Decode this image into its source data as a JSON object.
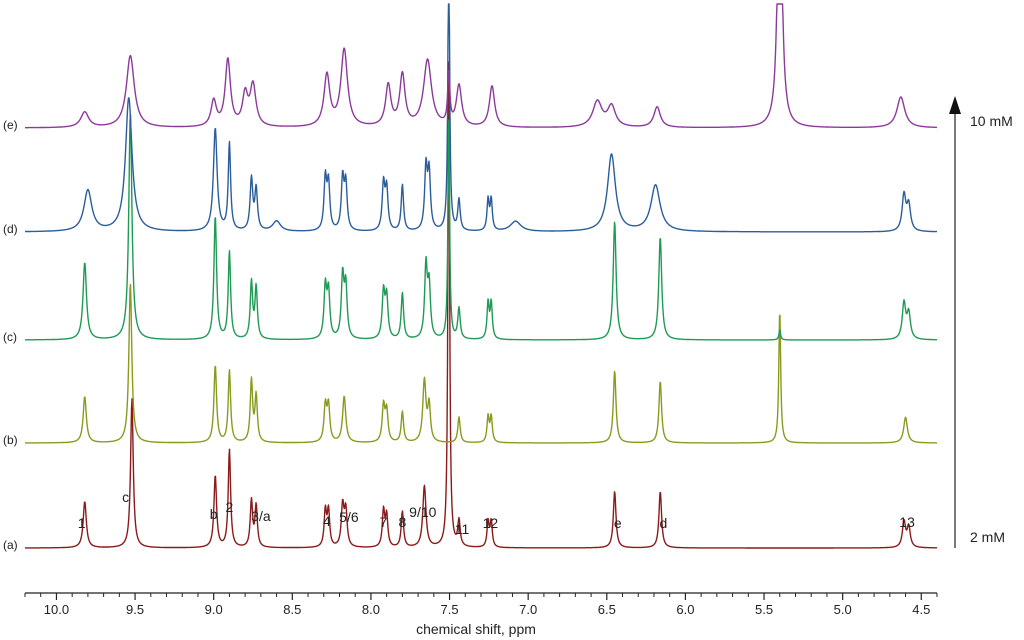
{
  "chart_data": {
    "type": "line",
    "xlabel": "chemical shift, ppm",
    "xlim": [
      10.2,
      4.4
    ],
    "x_ticks": [
      "10.0",
      "9.5",
      "9.0",
      "8.5",
      "8.0",
      "7.5",
      "7.0",
      "6.5",
      "6.0",
      "5.5",
      "5.0",
      "4.5"
    ],
    "x_tick_values": [
      10.0,
      9.5,
      9.0,
      8.5,
      8.0,
      7.5,
      7.0,
      6.5,
      6.0,
      5.5,
      5.0,
      4.5
    ],
    "concentration_arrow": {
      "top_label": "10 mM",
      "bottom_label": "2 mM"
    },
    "series": [
      {
        "name": "(a)",
        "color": "#8b1a1a",
        "peaks": [
          {
            "ppm": 9.82,
            "h": 0.09,
            "w": 0.012
          },
          {
            "ppm": 9.52,
            "h": 0.29,
            "w": 0.01
          },
          {
            "ppm": 8.99,
            "h": 0.14,
            "w": 0.01
          },
          {
            "ppm": 8.9,
            "h": 0.19,
            "w": 0.009
          },
          {
            "ppm": 8.76,
            "h": 0.09,
            "w": 0.009
          },
          {
            "ppm": 8.73,
            "h": 0.08,
            "w": 0.009
          },
          {
            "ppm": 8.29,
            "h": 0.07,
            "w": 0.009
          },
          {
            "ppm": 8.27,
            "h": 0.07,
            "w": 0.009
          },
          {
            "ppm": 8.18,
            "h": 0.08,
            "w": 0.01
          },
          {
            "ppm": 8.16,
            "h": 0.07,
            "w": 0.01
          },
          {
            "ppm": 7.92,
            "h": 0.07,
            "w": 0.009
          },
          {
            "ppm": 7.9,
            "h": 0.06,
            "w": 0.009
          },
          {
            "ppm": 7.8,
            "h": 0.07,
            "w": 0.009
          },
          {
            "ppm": 7.66,
            "h": 0.12,
            "w": 0.012
          },
          {
            "ppm": 7.505,
            "h": 1.0,
            "w": 0.006
          },
          {
            "ppm": 7.44,
            "h": 0.05,
            "w": 0.009
          },
          {
            "ppm": 7.255,
            "h": 0.05,
            "w": 0.008
          },
          {
            "ppm": 7.235,
            "h": 0.05,
            "w": 0.008
          },
          {
            "ppm": 6.45,
            "h": 0.11,
            "w": 0.01
          },
          {
            "ppm": 6.16,
            "h": 0.11,
            "w": 0.01
          },
          {
            "ppm": 4.61,
            "h": 0.05,
            "w": 0.012
          },
          {
            "ppm": 4.58,
            "h": 0.04,
            "w": 0.012
          }
        ]
      },
      {
        "name": "(b)",
        "color": "#8a9a1e",
        "peaks": [
          {
            "ppm": 9.82,
            "h": 0.09,
            "w": 0.012
          },
          {
            "ppm": 9.53,
            "h": 0.31,
            "w": 0.011
          },
          {
            "ppm": 8.99,
            "h": 0.15,
            "w": 0.01
          },
          {
            "ppm": 8.9,
            "h": 0.14,
            "w": 0.009
          },
          {
            "ppm": 8.76,
            "h": 0.12,
            "w": 0.009
          },
          {
            "ppm": 8.73,
            "h": 0.09,
            "w": 0.009
          },
          {
            "ppm": 8.29,
            "h": 0.07,
            "w": 0.01
          },
          {
            "ppm": 8.27,
            "h": 0.07,
            "w": 0.01
          },
          {
            "ppm": 8.17,
            "h": 0.09,
            "w": 0.012
          },
          {
            "ppm": 7.92,
            "h": 0.07,
            "w": 0.01
          },
          {
            "ppm": 7.9,
            "h": 0.06,
            "w": 0.01
          },
          {
            "ppm": 7.8,
            "h": 0.06,
            "w": 0.009
          },
          {
            "ppm": 7.66,
            "h": 0.12,
            "w": 0.012
          },
          {
            "ppm": 7.63,
            "h": 0.07,
            "w": 0.01
          },
          {
            "ppm": 7.44,
            "h": 0.05,
            "w": 0.009
          },
          {
            "ppm": 7.255,
            "h": 0.05,
            "w": 0.008
          },
          {
            "ppm": 7.235,
            "h": 0.05,
            "w": 0.008
          },
          {
            "ppm": 6.45,
            "h": 0.14,
            "w": 0.01
          },
          {
            "ppm": 6.16,
            "h": 0.12,
            "w": 0.01
          },
          {
            "ppm": 5.4,
            "h": 0.26,
            "w": 0.007
          },
          {
            "ppm": 4.6,
            "h": 0.05,
            "w": 0.014
          }
        ]
      },
      {
        "name": "(c)",
        "color": "#1f9a55",
        "peaks": [
          {
            "ppm": 9.82,
            "h": 0.15,
            "w": 0.013
          },
          {
            "ppm": 9.53,
            "h": 0.44,
            "w": 0.012
          },
          {
            "ppm": 8.99,
            "h": 0.24,
            "w": 0.01
          },
          {
            "ppm": 8.9,
            "h": 0.17,
            "w": 0.009
          },
          {
            "ppm": 8.76,
            "h": 0.11,
            "w": 0.009
          },
          {
            "ppm": 8.73,
            "h": 0.1,
            "w": 0.009
          },
          {
            "ppm": 8.29,
            "h": 0.1,
            "w": 0.01
          },
          {
            "ppm": 8.27,
            "h": 0.09,
            "w": 0.01
          },
          {
            "ppm": 8.18,
            "h": 0.12,
            "w": 0.01
          },
          {
            "ppm": 8.16,
            "h": 0.1,
            "w": 0.01
          },
          {
            "ppm": 7.92,
            "h": 0.09,
            "w": 0.01
          },
          {
            "ppm": 7.9,
            "h": 0.08,
            "w": 0.01
          },
          {
            "ppm": 7.8,
            "h": 0.09,
            "w": 0.009
          },
          {
            "ppm": 7.65,
            "h": 0.14,
            "w": 0.01
          },
          {
            "ppm": 7.63,
            "h": 0.1,
            "w": 0.01
          },
          {
            "ppm": 7.505,
            "h": 0.45,
            "w": 0.006
          },
          {
            "ppm": 7.44,
            "h": 0.06,
            "w": 0.009
          },
          {
            "ppm": 7.255,
            "h": 0.07,
            "w": 0.008
          },
          {
            "ppm": 7.235,
            "h": 0.07,
            "w": 0.008
          },
          {
            "ppm": 6.45,
            "h": 0.23,
            "w": 0.011
          },
          {
            "ppm": 6.16,
            "h": 0.2,
            "w": 0.011
          },
          {
            "ppm": 5.4,
            "h": 0.02,
            "w": 0.006
          },
          {
            "ppm": 4.61,
            "h": 0.07,
            "w": 0.013
          },
          {
            "ppm": 4.58,
            "h": 0.05,
            "w": 0.013
          }
        ]
      },
      {
        "name": "(d)",
        "color": "#2b5d9a",
        "peaks": [
          {
            "ppm": 9.8,
            "h": 0.08,
            "w": 0.03
          },
          {
            "ppm": 9.54,
            "h": 0.26,
            "w": 0.025
          },
          {
            "ppm": 8.99,
            "h": 0.2,
            "w": 0.014
          },
          {
            "ppm": 8.9,
            "h": 0.17,
            "w": 0.009
          },
          {
            "ppm": 8.76,
            "h": 0.1,
            "w": 0.01
          },
          {
            "ppm": 8.73,
            "h": 0.08,
            "w": 0.01
          },
          {
            "ppm": 8.6,
            "h": 0.02,
            "w": 0.03
          },
          {
            "ppm": 8.29,
            "h": 0.1,
            "w": 0.01
          },
          {
            "ppm": 8.27,
            "h": 0.09,
            "w": 0.01
          },
          {
            "ppm": 8.18,
            "h": 0.1,
            "w": 0.01
          },
          {
            "ppm": 8.16,
            "h": 0.09,
            "w": 0.01
          },
          {
            "ppm": 7.92,
            "h": 0.09,
            "w": 0.01
          },
          {
            "ppm": 7.9,
            "h": 0.08,
            "w": 0.01
          },
          {
            "ppm": 7.8,
            "h": 0.09,
            "w": 0.009
          },
          {
            "ppm": 7.65,
            "h": 0.12,
            "w": 0.01
          },
          {
            "ppm": 7.63,
            "h": 0.11,
            "w": 0.01
          },
          {
            "ppm": 7.505,
            "h": 0.62,
            "w": 0.006
          },
          {
            "ppm": 7.44,
            "h": 0.06,
            "w": 0.009
          },
          {
            "ppm": 7.255,
            "h": 0.06,
            "w": 0.008
          },
          {
            "ppm": 7.235,
            "h": 0.06,
            "w": 0.008
          },
          {
            "ppm": 7.08,
            "h": 0.02,
            "w": 0.04
          },
          {
            "ppm": 6.47,
            "h": 0.15,
            "w": 0.03
          },
          {
            "ppm": 6.19,
            "h": 0.09,
            "w": 0.035
          },
          {
            "ppm": 4.61,
            "h": 0.07,
            "w": 0.014
          },
          {
            "ppm": 4.58,
            "h": 0.05,
            "w": 0.014
          }
        ]
      },
      {
        "name": "(e)",
        "color": "#8b3a9a",
        "peaks": [
          {
            "ppm": 9.82,
            "h": 0.03,
            "w": 0.03
          },
          {
            "ppm": 9.53,
            "h": 0.14,
            "w": 0.03
          },
          {
            "ppm": 9.0,
            "h": 0.05,
            "w": 0.02
          },
          {
            "ppm": 8.91,
            "h": 0.13,
            "w": 0.02
          },
          {
            "ppm": 8.8,
            "h": 0.06,
            "w": 0.02
          },
          {
            "ppm": 8.75,
            "h": 0.08,
            "w": 0.022
          },
          {
            "ppm": 8.28,
            "h": 0.1,
            "w": 0.022
          },
          {
            "ppm": 8.17,
            "h": 0.15,
            "w": 0.025
          },
          {
            "ppm": 7.89,
            "h": 0.08,
            "w": 0.02
          },
          {
            "ppm": 7.8,
            "h": 0.1,
            "w": 0.02
          },
          {
            "ppm": 7.64,
            "h": 0.13,
            "w": 0.03
          },
          {
            "ppm": 7.505,
            "h": 0.1,
            "w": 0.008
          },
          {
            "ppm": 7.44,
            "h": 0.08,
            "w": 0.02
          },
          {
            "ppm": 7.23,
            "h": 0.08,
            "w": 0.02
          },
          {
            "ppm": 6.56,
            "h": 0.05,
            "w": 0.035
          },
          {
            "ppm": 6.47,
            "h": 0.04,
            "w": 0.03
          },
          {
            "ppm": 6.18,
            "h": 0.04,
            "w": 0.025
          },
          {
            "ppm": 5.4,
            "h": 0.62,
            "w": 0.015
          },
          {
            "ppm": 4.63,
            "h": 0.06,
            "w": 0.03
          }
        ]
      }
    ],
    "annotations": [
      {
        "text": "1",
        "ppm": 9.84
      },
      {
        "text": "c",
        "ppm": 9.56
      },
      {
        "text": "b",
        "ppm": 9.0
      },
      {
        "text": "2",
        "ppm": 8.9
      },
      {
        "text": "3/a",
        "ppm": 8.7
      },
      {
        "text": "4",
        "ppm": 8.28
      },
      {
        "text": "5/6",
        "ppm": 8.14
      },
      {
        "text": "7",
        "ppm": 7.92
      },
      {
        "text": "8",
        "ppm": 7.8
      },
      {
        "text": "9/10",
        "ppm": 7.67
      },
      {
        "text": "11",
        "ppm": 7.42
      },
      {
        "text": "12",
        "ppm": 7.24
      },
      {
        "text": "e",
        "ppm": 6.43
      },
      {
        "text": "d",
        "ppm": 6.14
      },
      {
        "text": "13",
        "ppm": 4.59
      }
    ]
  }
}
